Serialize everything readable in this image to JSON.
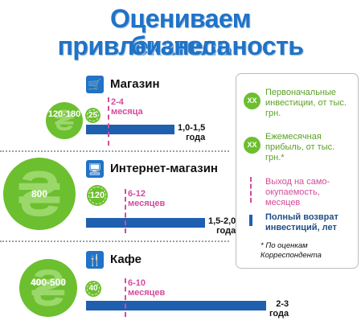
{
  "title": {
    "line1": "Оцениваем привлекательность",
    "line2": "бизнеса"
  },
  "chart_data": {
    "type": "bar",
    "categories": [
      "Магазин",
      "Интернет-магазин",
      "Кафе"
    ],
    "series": [
      {
        "name": "Первоначальные инвестиции, от тыс. грн.",
        "values": [
          "120-180",
          "800",
          "400-500"
        ]
      },
      {
        "name": "Ежемесячная прибыль, от тыс. грн.*",
        "values": [
          25,
          120,
          40
        ]
      },
      {
        "name": "Выход на само-окупаемость, месяцев",
        "values": [
          "2-4",
          "6-12",
          "6-10"
        ]
      },
      {
        "name": "Полный возврат инвестиций, лет",
        "values": [
          "1,0-1,5",
          "1,5-2,0",
          "2-3"
        ]
      }
    ],
    "items": [
      {
        "name": "Магазин",
        "icon": "cart-icon",
        "investment": "120-180",
        "profit": "25",
        "payback_label": "2-4",
        "payback_unit": "месяца",
        "payback_months": [
          2,
          4
        ],
        "return_label": "1,0-1,5",
        "return_unit": "года",
        "return_years": [
          1.0,
          1.5
        ]
      },
      {
        "name": "Интернет-магазин",
        "icon": "computer-icon",
        "investment": "800",
        "profit": "120",
        "payback_label": "6-12",
        "payback_unit": "месяцев",
        "payback_months": [
          6,
          12
        ],
        "return_label": "1,5-2,0",
        "return_unit": "года",
        "return_years": [
          1.5,
          2.0
        ]
      },
      {
        "name": "Кафе",
        "icon": "fork-knife-icon",
        "investment": "400-500",
        "profit": "40",
        "payback_label": "6-10",
        "payback_unit": "месяцев",
        "payback_months": [
          6,
          10
        ],
        "return_label": "2-3",
        "return_unit": "года",
        "return_years": [
          2,
          3
        ]
      }
    ]
  },
  "legend": {
    "circle_text": "XX",
    "investment": "Первоначальные инвестиции, от тыс. грн.",
    "profit": "Ежемесячная прибыль, от тыс. грн.*",
    "payback": "Выход на само-окупаемость, месяцев",
    "return": "Полный возврат инвестиций, лет",
    "note": "* По оценкам Корреспондента"
  },
  "colors": {
    "title": "#1f73c8",
    "green": "#6cbf2e",
    "bar": "#1f5fb0",
    "pink": "#d44b9a"
  }
}
